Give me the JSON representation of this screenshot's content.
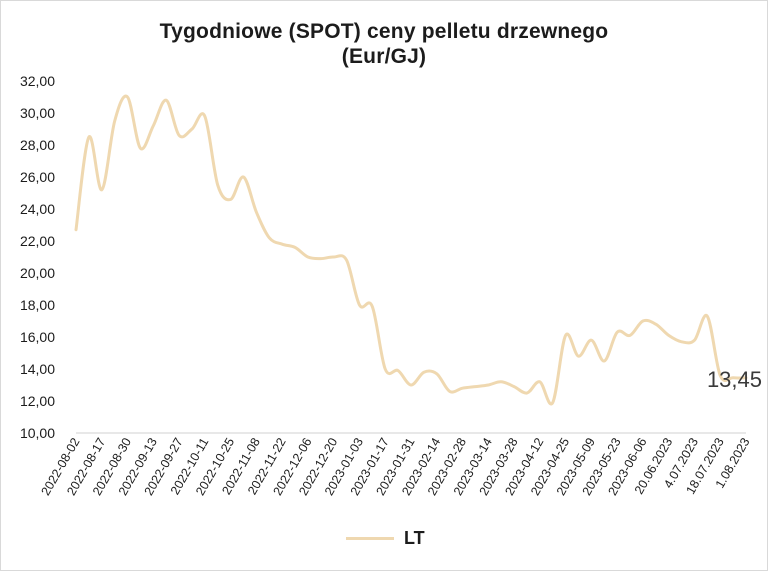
{
  "chart_data": {
    "type": "line",
    "title": "Tygodniowe (SPOT) ceny pelletu drzewnego",
    "subtitle": "(Eur/GJ)",
    "xlabel": "",
    "ylabel": "",
    "ylim": [
      10,
      32
    ],
    "yticks": [
      "10,00",
      "12,00",
      "14,00",
      "16,00",
      "18,00",
      "20,00",
      "22,00",
      "24,00",
      "26,00",
      "28,00",
      "30,00",
      "32,00"
    ],
    "xtick_labels": [
      "2022-08-02",
      "2022-08-17",
      "2022-08-30",
      "2022-09-13",
      "2022-09-27",
      "2022-10-11",
      "2022-10-25",
      "2022-11-08",
      "2022-11-22",
      "2022-12-06",
      "2022-12-20",
      "2023-01-03",
      "2023-01-17",
      "2023-01-31",
      "2023-02-14",
      "2023-02-28",
      "2023-03-14",
      "2023-03-28",
      "2023-04-12",
      "2023-04-25",
      "2023-05-09",
      "2023-05-23",
      "2023-06-06",
      "20.06.2023",
      "4.07.2023",
      "18.07.2023",
      "1.08.2023"
    ],
    "grid": false,
    "legend_position": "bottom",
    "series": [
      {
        "name": "LT",
        "color": "#efd8b0",
        "x": [
          0,
          0.5,
          1,
          1.5,
          2,
          2.5,
          3,
          3.5,
          4,
          4.5,
          5,
          5.5,
          6,
          6.5,
          7,
          7.5,
          8,
          8.5,
          9,
          9.5,
          10,
          10.5,
          11,
          11.5,
          12,
          12.5,
          13,
          13.5,
          14,
          14.5,
          15,
          15.5,
          16,
          16.5,
          17,
          17.5,
          18,
          18.5,
          19,
          19.5,
          20,
          20.5,
          21,
          21.5,
          22,
          22.5,
          23,
          23.5,
          24,
          24.5,
          25,
          25.5,
          26
        ],
        "values": [
          22.7,
          28.5,
          25.2,
          29.5,
          31.0,
          27.8,
          29.2,
          30.8,
          28.6,
          29.0,
          29.8,
          25.5,
          24.6,
          26.0,
          23.8,
          22.2,
          21.8,
          21.6,
          21.0,
          20.9,
          21.0,
          20.8,
          18.0,
          17.9,
          14.0,
          13.9,
          13.0,
          13.8,
          13.7,
          12.6,
          12.8,
          12.9,
          13.0,
          13.2,
          12.9,
          12.5,
          13.2,
          11.9,
          16.1,
          14.8,
          15.8,
          14.5,
          16.3,
          16.1,
          17.0,
          16.8,
          16.1,
          15.7,
          15.8,
          17.3,
          13.6,
          13.45,
          13.45
        ]
      }
    ],
    "annotations": [
      {
        "text": "13,45",
        "series": "LT",
        "at_index": 52
      }
    ]
  }
}
